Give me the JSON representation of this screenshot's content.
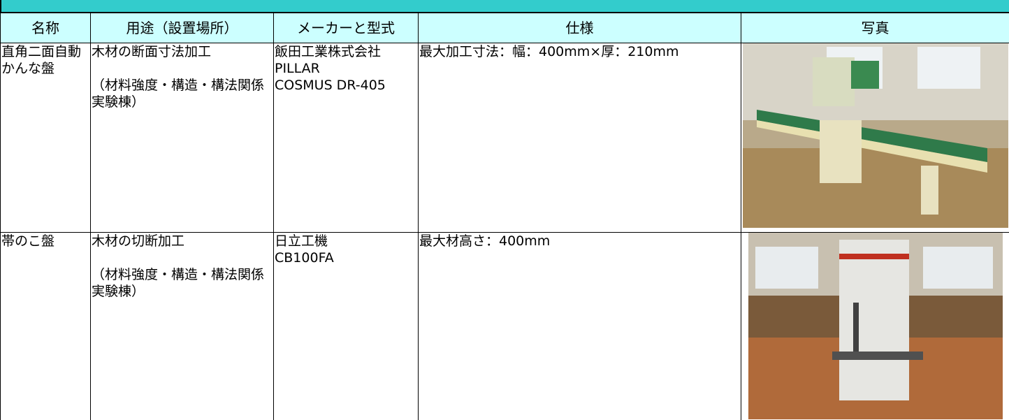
{
  "table": {
    "header": [
      "名称",
      "用途（設置場所）",
      "メーカーと型式",
      "仕様",
      "写真"
    ],
    "rows": [
      [
        "直角二面自動かんな盤",
        [
          "木材の断面寸法加工",
          "（材料強度・構造・構法関係実験棟）"
        ],
        [
          "飯田工業株式会社",
          "PILLAR",
          "COSMUS DR-405"
        ],
        "最大加工寸法：幅：400mm×厚：210mm"
      ],
      [
        "帯のこ盤",
        [
          "木材の切断加工",
          "（材料強度・構造・構法関係実験棟）"
        ],
        [
          "日立工機",
          "CB100FA"
        ],
        "最大材高さ：400mm"
      ]
    ]
  }
}
